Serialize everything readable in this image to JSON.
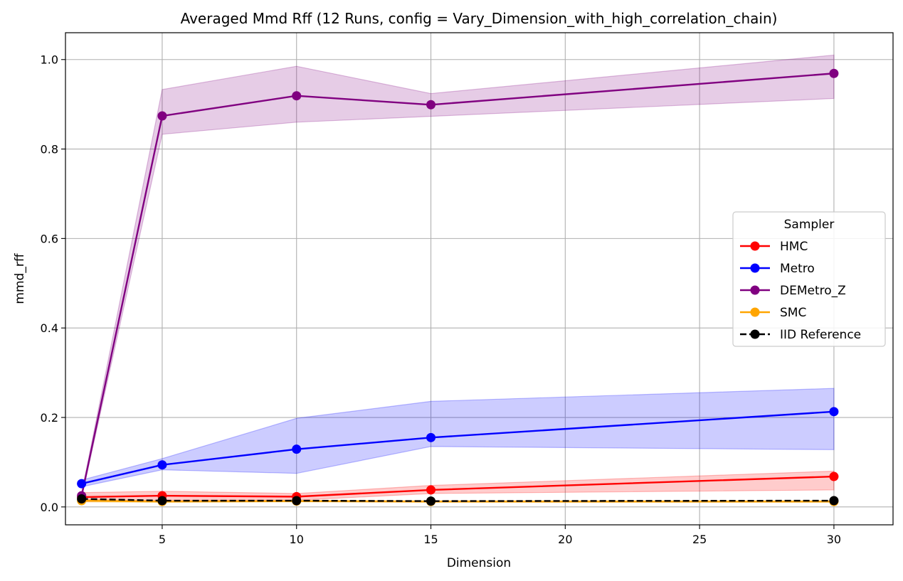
{
  "chart_data": {
    "type": "line",
    "title": "Averaged Mmd Rff (12 Runs, config = Vary_Dimension_with_high_correlation_chain)",
    "xlabel": "Dimension",
    "ylabel": "mmd_rff",
    "xlim": [
      1.4,
      32.2
    ],
    "ylim": [
      -0.04,
      1.06
    ],
    "xticks": [
      5,
      10,
      15,
      20,
      25,
      30
    ],
    "yticks": [
      0.0,
      0.2,
      0.4,
      0.6,
      0.8,
      1.0
    ],
    "ytick_labels": [
      "0.0",
      "0.2",
      "0.4",
      "0.6",
      "0.8",
      "1.0"
    ],
    "grid": true,
    "legend": {
      "title": "Sampler",
      "position": "center-right"
    },
    "x": [
      2,
      5,
      10,
      15,
      30
    ],
    "series": [
      {
        "name": "HMC",
        "color": "#ff0000",
        "dashed": false,
        "values": [
          0.022,
          0.025,
          0.023,
          0.038,
          0.068
        ],
        "lower": [
          0.012,
          0.015,
          0.015,
          0.03,
          0.038
        ],
        "upper": [
          0.032,
          0.035,
          0.03,
          0.048,
          0.08
        ]
      },
      {
        "name": "Metro",
        "color": "#0000ff",
        "dashed": false,
        "values": [
          0.052,
          0.094,
          0.129,
          0.155,
          0.213
        ],
        "lower": [
          0.045,
          0.083,
          0.075,
          0.135,
          0.128
        ],
        "upper": [
          0.06,
          0.108,
          0.198,
          0.236,
          0.265
        ]
      },
      {
        "name": "DEMetro_Z",
        "color": "#800080",
        "dashed": false,
        "values": [
          0.025,
          0.874,
          0.919,
          0.899,
          0.969
        ],
        "lower": [
          0.02,
          0.833,
          0.86,
          0.873,
          0.913
        ],
        "upper": [
          0.03,
          0.933,
          0.985,
          0.924,
          1.01
        ]
      },
      {
        "name": "SMC",
        "color": "#ffa500",
        "dashed": false,
        "values": [
          0.014,
          0.012,
          0.013,
          0.012,
          0.012
        ],
        "lower": [
          0.011,
          0.01,
          0.011,
          0.01,
          0.01
        ],
        "upper": [
          0.017,
          0.014,
          0.015,
          0.014,
          0.014
        ]
      },
      {
        "name": "IID Reference",
        "color": "#000000",
        "dashed": true,
        "values": [
          0.018,
          0.014,
          0.014,
          0.013,
          0.014
        ]
      }
    ]
  }
}
